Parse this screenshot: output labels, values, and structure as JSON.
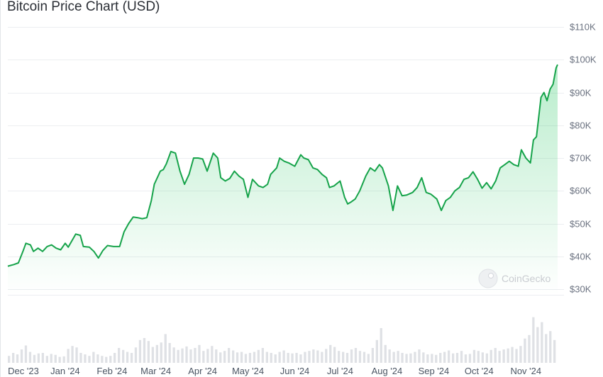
{
  "title": "Bitcoin Price Chart (USD)",
  "watermark": {
    "text": "CoinGecko",
    "icon": "gecko-logo-icon"
  },
  "colors": {
    "line": "#16a34a",
    "fill": "#22c55e",
    "volume": "#d4d7dc",
    "grid": "#eceef1"
  },
  "chart_data": {
    "type": "area",
    "title": "Bitcoin Price Chart (USD)",
    "xlabel": "",
    "ylabel": "",
    "x_ticks": [
      "Dec '23",
      "Jan '24",
      "Feb '24",
      "Mar '24",
      "Apr '24",
      "May '24",
      "Jun '24",
      "Jul '24",
      "Aug '24",
      "Sep '24",
      "Oct '24",
      "Nov '24"
    ],
    "y_ticks": [
      "$30K",
      "$40K",
      "$50K",
      "$60K",
      "$70K",
      "$80K",
      "$90K",
      "$100K",
      "$110K"
    ],
    "y_tick_values": [
      30000,
      40000,
      50000,
      60000,
      70000,
      80000,
      90000,
      100000,
      110000
    ],
    "xlim": [
      "2023-11-24",
      "2024-11-22"
    ],
    "ylim": [
      24000,
      112000
    ],
    "grid": true,
    "legend": "none",
    "series": [
      {
        "values": [
          [
            "2023-11-24",
            37000
          ],
          [
            "2023-11-28",
            37500
          ],
          [
            "2023-12-01",
            38000
          ],
          [
            "2023-12-04",
            41500
          ],
          [
            "2023-12-06",
            44000
          ],
          [
            "2023-12-09",
            43500
          ],
          [
            "2023-12-11",
            41500
          ],
          [
            "2023-12-14",
            42500
          ],
          [
            "2023-12-17",
            41500
          ],
          [
            "2023-12-20",
            43000
          ],
          [
            "2023-12-23",
            43500
          ],
          [
            "2023-12-26",
            42500
          ],
          [
            "2023-12-29",
            42000
          ],
          [
            "2024-01-01",
            44000
          ],
          [
            "2024-01-03",
            42800
          ],
          [
            "2024-01-08",
            46800
          ],
          [
            "2024-01-11",
            46400
          ],
          [
            "2024-01-13",
            43000
          ],
          [
            "2024-01-17",
            42800
          ],
          [
            "2024-01-20",
            41500
          ],
          [
            "2024-01-23",
            39500
          ],
          [
            "2024-01-26",
            41800
          ],
          [
            "2024-01-29",
            43300
          ],
          [
            "2024-02-02",
            43000
          ],
          [
            "2024-02-06",
            43000
          ],
          [
            "2024-02-09",
            47500
          ],
          [
            "2024-02-12",
            50000
          ],
          [
            "2024-02-15",
            52000
          ],
          [
            "2024-02-18",
            51800
          ],
          [
            "2024-02-21",
            51500
          ],
          [
            "2024-02-24",
            51800
          ],
          [
            "2024-02-27",
            57000
          ],
          [
            "2024-02-29",
            62000
          ],
          [
            "2024-03-04",
            66000
          ],
          [
            "2024-03-06",
            66500
          ],
          [
            "2024-03-08",
            68300
          ],
          [
            "2024-03-11",
            72000
          ],
          [
            "2024-03-14",
            71500
          ],
          [
            "2024-03-17",
            66000
          ],
          [
            "2024-03-20",
            62000
          ],
          [
            "2024-03-23",
            65000
          ],
          [
            "2024-03-26",
            70000
          ],
          [
            "2024-03-29",
            70000
          ],
          [
            "2024-04-01",
            69700
          ],
          [
            "2024-04-04",
            66000
          ],
          [
            "2024-04-08",
            71500
          ],
          [
            "2024-04-11",
            70000
          ],
          [
            "2024-04-13",
            64000
          ],
          [
            "2024-04-16",
            63000
          ],
          [
            "2024-04-19",
            63800
          ],
          [
            "2024-04-22",
            66000
          ],
          [
            "2024-04-25",
            64500
          ],
          [
            "2024-04-28",
            63500
          ],
          [
            "2024-05-01",
            58000
          ],
          [
            "2024-05-04",
            63500
          ],
          [
            "2024-05-08",
            61500
          ],
          [
            "2024-05-11",
            61000
          ],
          [
            "2024-05-14",
            62000
          ],
          [
            "2024-05-16",
            65000
          ],
          [
            "2024-05-20",
            67000
          ],
          [
            "2024-05-22",
            70000
          ],
          [
            "2024-05-25",
            69000
          ],
          [
            "2024-05-28",
            68500
          ],
          [
            "2024-06-01",
            67500
          ],
          [
            "2024-06-05",
            71000
          ],
          [
            "2024-06-07",
            70000
          ],
          [
            "2024-06-10",
            69500
          ],
          [
            "2024-06-13",
            67000
          ],
          [
            "2024-06-16",
            66500
          ],
          [
            "2024-06-19",
            65000
          ],
          [
            "2024-06-22",
            64000
          ],
          [
            "2024-06-24",
            61000
          ],
          [
            "2024-06-27",
            61500
          ],
          [
            "2024-07-01",
            63000
          ],
          [
            "2024-07-04",
            58000
          ],
          [
            "2024-07-06",
            56000
          ],
          [
            "2024-07-08",
            56500
          ],
          [
            "2024-07-11",
            57500
          ],
          [
            "2024-07-14",
            60000
          ],
          [
            "2024-07-18",
            64500
          ],
          [
            "2024-07-21",
            67000
          ],
          [
            "2024-07-24",
            66000
          ],
          [
            "2024-07-27",
            68000
          ],
          [
            "2024-07-29",
            67000
          ],
          [
            "2024-08-02",
            61500
          ],
          [
            "2024-08-05",
            54000
          ],
          [
            "2024-08-08",
            61500
          ],
          [
            "2024-08-11",
            58500
          ],
          [
            "2024-08-14",
            58700
          ],
          [
            "2024-08-18",
            59500
          ],
          [
            "2024-08-21",
            61000
          ],
          [
            "2024-08-24",
            64000
          ],
          [
            "2024-08-27",
            59500
          ],
          [
            "2024-08-30",
            59000
          ],
          [
            "2024-09-03",
            57500
          ],
          [
            "2024-09-06",
            54000
          ],
          [
            "2024-09-09",
            57000
          ],
          [
            "2024-09-12",
            58000
          ],
          [
            "2024-09-15",
            60000
          ],
          [
            "2024-09-18",
            61000
          ],
          [
            "2024-09-21",
            63500
          ],
          [
            "2024-09-24",
            64000
          ],
          [
            "2024-09-27",
            65800
          ],
          [
            "2024-09-30",
            63500
          ],
          [
            "2024-10-03",
            60800
          ],
          [
            "2024-10-06",
            62500
          ],
          [
            "2024-10-09",
            60600
          ],
          [
            "2024-10-12",
            63000
          ],
          [
            "2024-10-15",
            67000
          ],
          [
            "2024-10-18",
            68000
          ],
          [
            "2024-10-21",
            69000
          ],
          [
            "2024-10-24",
            68000
          ],
          [
            "2024-10-27",
            67500
          ],
          [
            "2024-10-29",
            72500
          ],
          [
            "2024-11-01",
            70000
          ],
          [
            "2024-11-04",
            68500
          ],
          [
            "2024-11-06",
            75500
          ],
          [
            "2024-11-08",
            76500
          ],
          [
            "2024-11-11",
            88500
          ],
          [
            "2024-11-13",
            90000
          ],
          [
            "2024-11-15",
            87500
          ],
          [
            "2024-11-17",
            91000
          ],
          [
            "2024-11-19",
            92500
          ],
          [
            "2024-11-21",
            97500
          ],
          [
            "2024-11-22",
            98500
          ]
        ]
      }
    ],
    "volume_series": {
      "name": "volume",
      "note_scale": "relative",
      "values": [
        0.14,
        0.2,
        0.17,
        0.27,
        0.35,
        0.22,
        0.16,
        0.19,
        0.2,
        0.14,
        0.18,
        0.16,
        0.12,
        0.13,
        0.28,
        0.34,
        0.31,
        0.2,
        0.17,
        0.14,
        0.22,
        0.17,
        0.14,
        0.12,
        0.14,
        0.2,
        0.3,
        0.26,
        0.22,
        0.2,
        0.31,
        0.46,
        0.5,
        0.44,
        0.32,
        0.36,
        0.41,
        0.58,
        0.4,
        0.31,
        0.26,
        0.29,
        0.33,
        0.27,
        0.3,
        0.36,
        0.24,
        0.28,
        0.34,
        0.27,
        0.21,
        0.24,
        0.3,
        0.25,
        0.21,
        0.22,
        0.18,
        0.2,
        0.22,
        0.26,
        0.3,
        0.22,
        0.2,
        0.17,
        0.22,
        0.25,
        0.2,
        0.19,
        0.2,
        0.17,
        0.22,
        0.24,
        0.27,
        0.25,
        0.22,
        0.28,
        0.36,
        0.32,
        0.24,
        0.22,
        0.2,
        0.27,
        0.3,
        0.24,
        0.22,
        0.18,
        0.3,
        0.46,
        0.7,
        0.36,
        0.27,
        0.22,
        0.24,
        0.2,
        0.18,
        0.19,
        0.22,
        0.27,
        0.21,
        0.17,
        0.18,
        0.16,
        0.2,
        0.22,
        0.25,
        0.19,
        0.2,
        0.24,
        0.17,
        0.18,
        0.26,
        0.24,
        0.21,
        0.19,
        0.26,
        0.3,
        0.24,
        0.27,
        0.29,
        0.32,
        0.28,
        0.34,
        0.49,
        0.56,
        0.92,
        0.72,
        0.82,
        0.58,
        0.64,
        0.46
      ]
    }
  }
}
